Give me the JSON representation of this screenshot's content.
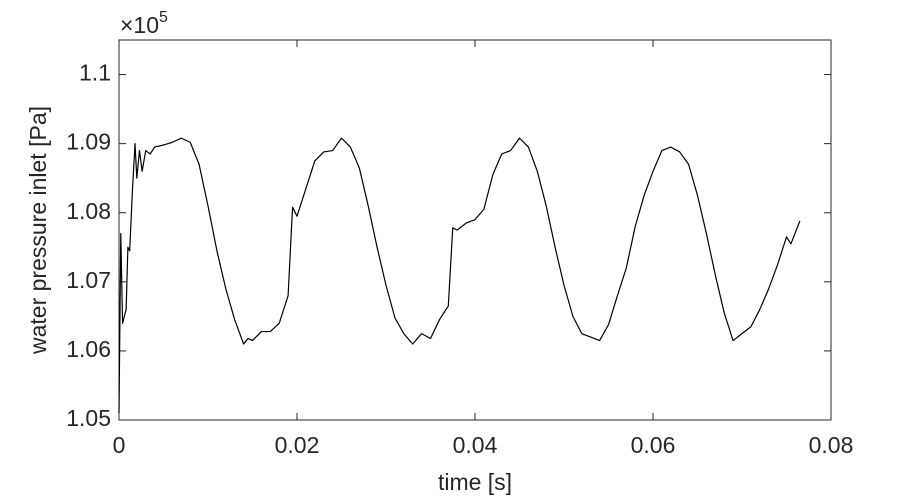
{
  "chart_data": {
    "type": "line",
    "y_multiplier": {
      "base": "×10",
      "exponent": "5"
    },
    "xlabel": "time [s]",
    "ylabel": "water pressure inlet [Pa]",
    "xlim": [
      0,
      0.08
    ],
    "xticks": [
      0,
      0.02,
      0.04,
      0.06,
      0.08
    ],
    "ylim": [
      1.05,
      1.105
    ],
    "yticks": [
      1.05,
      1.06,
      1.07,
      1.08,
      1.09,
      1.1
    ],
    "grid": false,
    "series": [
      {
        "color": "#000000",
        "x": [
          0,
          0.0002,
          0.0004,
          0.0008,
          0.001,
          0.0012,
          0.0015,
          0.0018,
          0.002,
          0.0023,
          0.0026,
          0.003,
          0.0035,
          0.004,
          0.005,
          0.006,
          0.007,
          0.008,
          0.009,
          0.01,
          0.011,
          0.012,
          0.013,
          0.014,
          0.0145,
          0.015,
          0.016,
          0.017,
          0.018,
          0.019,
          0.0195,
          0.02,
          0.021,
          0.022,
          0.023,
          0.024,
          0.025,
          0.026,
          0.027,
          0.028,
          0.029,
          0.03,
          0.031,
          0.032,
          0.033,
          0.034,
          0.035,
          0.036,
          0.037,
          0.0375,
          0.038,
          0.039,
          0.04,
          0.041,
          0.042,
          0.043,
          0.044,
          0.045,
          0.046,
          0.047,
          0.048,
          0.049,
          0.05,
          0.051,
          0.052,
          0.053,
          0.054,
          0.055,
          0.056,
          0.057,
          0.058,
          0.059,
          0.06,
          0.061,
          0.062,
          0.063,
          0.064,
          0.065,
          0.066,
          0.067,
          0.068,
          0.069,
          0.07,
          0.071,
          0.072,
          0.073,
          0.074,
          0.075,
          0.0755,
          0.0765
        ],
        "values": [
          1.051,
          1.077,
          1.064,
          1.066,
          1.075,
          1.0745,
          1.083,
          1.09,
          1.085,
          1.089,
          1.086,
          1.089,
          1.0885,
          1.0895,
          1.0898,
          1.0902,
          1.0908,
          1.0902,
          1.087,
          1.081,
          1.0745,
          1.069,
          1.0645,
          1.061,
          1.0618,
          1.0615,
          1.0628,
          1.0628,
          1.064,
          1.068,
          1.0808,
          1.0795,
          1.0835,
          1.0875,
          1.0888,
          1.089,
          1.0908,
          1.0895,
          1.0865,
          1.081,
          1.075,
          1.0695,
          1.0648,
          1.0625,
          1.061,
          1.0625,
          1.0618,
          1.0645,
          1.0665,
          1.0778,
          1.0775,
          1.0785,
          1.079,
          1.0805,
          1.0855,
          1.0885,
          1.089,
          1.0908,
          1.0895,
          1.086,
          1.081,
          1.075,
          1.0695,
          1.065,
          1.0625,
          1.062,
          1.0615,
          1.0638,
          1.068,
          1.072,
          1.078,
          1.0825,
          1.086,
          1.089,
          1.0895,
          1.0888,
          1.087,
          1.0825,
          1.077,
          1.071,
          1.0655,
          1.0615,
          1.0625,
          1.0635,
          1.066,
          1.069,
          1.0725,
          1.0765,
          1.0755,
          1.0788
        ]
      }
    ]
  }
}
